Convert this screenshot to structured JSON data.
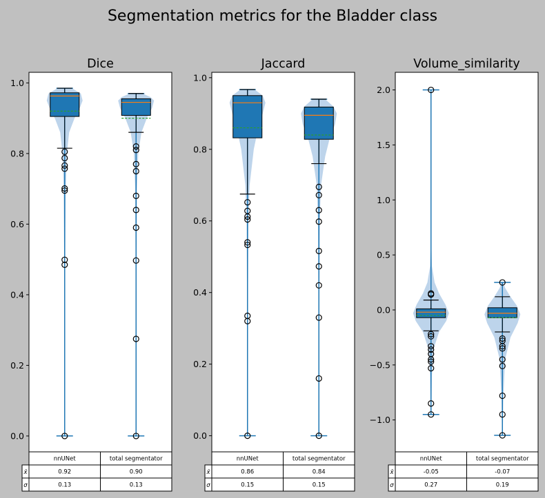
{
  "title": "Segmentation metrics for the Bladder class",
  "colors": {
    "box_fill": "#1f77b4",
    "box_edge": "#000000",
    "whisker": "#1f77b4",
    "violin": "#a7c6e4",
    "median": "#ff7f0e",
    "mean": "#2ca02c",
    "flier": "#000000",
    "background": "#c0c0c0"
  },
  "chart_data": [
    {
      "type": "box",
      "title": "Dice",
      "categories": [
        "nnUNet",
        "total segmentator"
      ],
      "ylim": [
        -0.045,
        1.03
      ],
      "yticks": [
        "0.0",
        "0.2",
        "0.4",
        "0.6",
        "0.8",
        "1.0"
      ],
      "ytick_values": [
        0.0,
        0.2,
        0.4,
        0.6,
        0.8,
        1.0
      ],
      "series": [
        {
          "min": 0.0,
          "max": 0.985,
          "q1": 0.905,
          "median": 0.963,
          "q3": 0.972,
          "mean": 0.92,
          "whisker_low": 0.815,
          "whisker_high": 0.985,
          "fliers": [
            0.805,
            0.787,
            0.766,
            0.757,
            0.701,
            0.695,
            0.499,
            0.485,
            0.0
          ],
          "violin_profile": [
            [
              0.0,
              0.01
            ],
            [
              0.45,
              0.02
            ],
            [
              0.7,
              0.06
            ],
            [
              0.8,
              0.12
            ],
            [
              0.86,
              0.25
            ],
            [
              0.9,
              0.55
            ],
            [
              0.93,
              0.85
            ],
            [
              0.95,
              1.0
            ],
            [
              0.97,
              0.9
            ],
            [
              0.985,
              0.4
            ]
          ]
        },
        {
          "min": 0.0,
          "max": 0.97,
          "q1": 0.908,
          "median": 0.945,
          "q3": 0.955,
          "mean": 0.9,
          "whisker_low": 0.86,
          "whisker_high": 0.97,
          "fliers": [
            0.82,
            0.81,
            0.77,
            0.75,
            0.68,
            0.64,
            0.59,
            0.497,
            0.275,
            0.0
          ],
          "violin_profile": [
            [
              0.0,
              0.01
            ],
            [
              0.45,
              0.02
            ],
            [
              0.7,
              0.05
            ],
            [
              0.8,
              0.12
            ],
            [
              0.86,
              0.3
            ],
            [
              0.9,
              0.6
            ],
            [
              0.93,
              0.9
            ],
            [
              0.95,
              1.0
            ],
            [
              0.96,
              0.8
            ],
            [
              0.97,
              0.35
            ]
          ]
        }
      ],
      "table": {
        "columns": [
          "nnUNet",
          "total segmentator"
        ],
        "rows": [
          {
            "label": "x̄",
            "values": [
              "0.92",
              "0.90"
            ]
          },
          {
            "label": "σ",
            "values": [
              "0.13",
              "0.13"
            ]
          }
        ]
      }
    },
    {
      "type": "box",
      "title": "Jaccard",
      "categories": [
        "nnUNet",
        "total segmentator"
      ],
      "ylim": [
        -0.045,
        1.015
      ],
      "yticks": [
        "0.0",
        "0.2",
        "0.4",
        "0.6",
        "0.8",
        "1.0"
      ],
      "ytick_values": [
        0.0,
        0.2,
        0.4,
        0.6,
        0.8,
        1.0
      ],
      "series": [
        {
          "min": 0.0,
          "max": 0.967,
          "q1": 0.832,
          "median": 0.93,
          "q3": 0.95,
          "mean": 0.86,
          "whisker_low": 0.675,
          "whisker_high": 0.967,
          "fliers": [
            0.652,
            0.628,
            0.612,
            0.604,
            0.54,
            0.533,
            0.335,
            0.32,
            0.0
          ],
          "violin_profile": [
            [
              0.0,
              0.01
            ],
            [
              0.35,
              0.02
            ],
            [
              0.6,
              0.05
            ],
            [
              0.7,
              0.12
            ],
            [
              0.8,
              0.35
            ],
            [
              0.86,
              0.6
            ],
            [
              0.9,
              0.85
            ],
            [
              0.93,
              1.0
            ],
            [
              0.95,
              0.85
            ],
            [
              0.967,
              0.4
            ]
          ]
        },
        {
          "min": 0.0,
          "max": 0.94,
          "q1": 0.828,
          "median": 0.895,
          "q3": 0.918,
          "mean": 0.84,
          "whisker_low": 0.76,
          "whisker_high": 0.94,
          "fliers": [
            0.695,
            0.672,
            0.63,
            0.598,
            0.516,
            0.473,
            0.42,
            0.33,
            0.16,
            0.0
          ],
          "violin_profile": [
            [
              0.0,
              0.01
            ],
            [
              0.35,
              0.02
            ],
            [
              0.6,
              0.05
            ],
            [
              0.7,
              0.12
            ],
            [
              0.78,
              0.35
            ],
            [
              0.83,
              0.6
            ],
            [
              0.87,
              0.9
            ],
            [
              0.9,
              1.0
            ],
            [
              0.92,
              0.8
            ],
            [
              0.94,
              0.35
            ]
          ]
        }
      ],
      "table": {
        "columns": [
          "nnUNet",
          "total segmentator"
        ],
        "rows": [
          {
            "label": "x̄",
            "values": [
              "0.86",
              "0.84"
            ]
          },
          {
            "label": "σ",
            "values": [
              "0.15",
              "0.15"
            ]
          }
        ]
      }
    },
    {
      "type": "box",
      "title": "Volume_similarity",
      "categories": [
        "nnUNet",
        "total segmentator"
      ],
      "ylim": [
        -1.29,
        2.16
      ],
      "yticks": [
        "−1.0",
        "−0.5",
        "0.0",
        "0.5",
        "1.0",
        "1.5",
        "2.0"
      ],
      "ytick_values": [
        -1.0,
        -0.5,
        0.0,
        0.5,
        1.0,
        1.5,
        2.0
      ],
      "series": [
        {
          "min": -0.95,
          "max": 2.0,
          "q1": -0.07,
          "median": -0.02,
          "q3": 0.01,
          "mean": -0.05,
          "whisker_low": -0.19,
          "whisker_high": 0.09,
          "fliers": [
            2.0,
            0.15,
            0.14,
            -0.22,
            -0.24,
            -0.33,
            -0.36,
            -0.4,
            -0.45,
            -0.47,
            -0.53,
            -0.85,
            -0.95
          ],
          "violin_profile": [
            [
              -0.95,
              0.02
            ],
            [
              -0.6,
              0.05
            ],
            [
              -0.35,
              0.15
            ],
            [
              -0.2,
              0.45
            ],
            [
              -0.1,
              0.85
            ],
            [
              -0.03,
              1.0
            ],
            [
              0.05,
              0.8
            ],
            [
              0.15,
              0.45
            ],
            [
              0.25,
              0.2
            ],
            [
              0.4,
              0.05
            ],
            [
              0.6,
              0.02
            ],
            [
              2.0,
              0.01
            ]
          ]
        },
        {
          "min": -1.14,
          "max": 0.25,
          "q1": -0.07,
          "median": -0.03,
          "q3": 0.02,
          "mean": -0.07,
          "whisker_low": -0.2,
          "whisker_high": 0.12,
          "fliers": [
            0.25,
            -0.26,
            -0.28,
            -0.33,
            -0.35,
            -0.45,
            -0.51,
            -0.78,
            -0.95,
            -1.14
          ],
          "violin_profile": [
            [
              -1.14,
              0.02
            ],
            [
              -0.8,
              0.05
            ],
            [
              -0.45,
              0.15
            ],
            [
              -0.25,
              0.45
            ],
            [
              -0.12,
              0.85
            ],
            [
              -0.04,
              1.0
            ],
            [
              0.04,
              0.8
            ],
            [
              0.12,
              0.45
            ],
            [
              0.2,
              0.15
            ],
            [
              0.25,
              0.05
            ]
          ]
        }
      ],
      "table": {
        "columns": [
          "nnUNet",
          "total segmentator"
        ],
        "rows": [
          {
            "label": "x̄",
            "values": [
              "-0.05",
              "-0.07"
            ]
          },
          {
            "label": "σ",
            "values": [
              "0.27",
              "0.19"
            ]
          }
        ]
      }
    }
  ]
}
